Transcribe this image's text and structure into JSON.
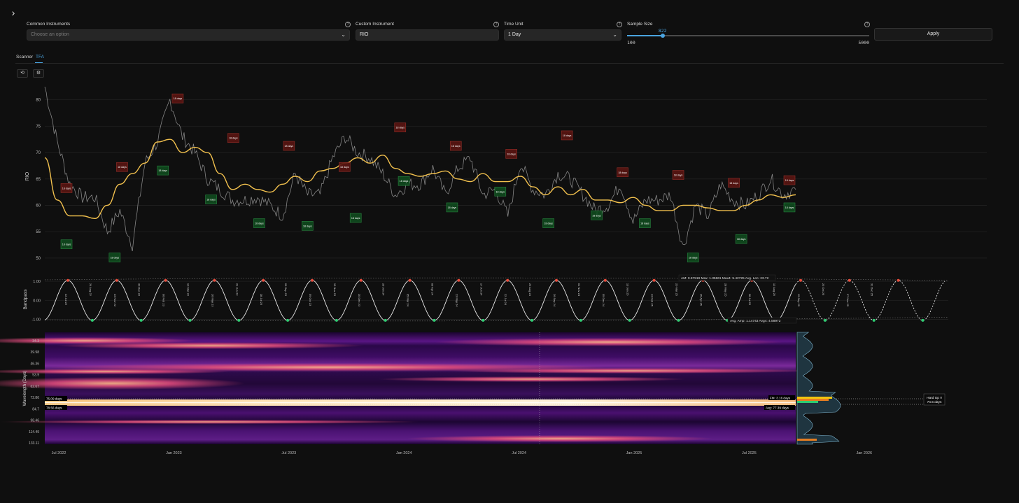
{
  "controls": {
    "common_label": "Common Instruments",
    "common_placeholder": "Choose an option",
    "custom_label": "Custom Instrument",
    "custom_value": "RIO",
    "time_label": "Time Unit",
    "time_value": "1 Day",
    "sample_label": "Sample Size",
    "sample_value": "822",
    "sample_min": "100",
    "sample_max": "5000",
    "sample_fraction": 0.147,
    "apply_label": "Apply"
  },
  "tabs": [
    {
      "label": "Scanner",
      "active": false
    },
    {
      "label": "TFA",
      "active": true
    }
  ],
  "colors": {
    "background": "#0f0f0f",
    "accent": "#4aa3df",
    "cycle_line": "#f2c14e",
    "peak_marker": "#e74c3c",
    "trough_marker": "#2ecc71",
    "price_line": "#9a9a9a"
  },
  "chart_data": [
    {
      "type": "line",
      "name": "price",
      "ylabel": "RIO",
      "yticks": [
        "80",
        "75",
        "70",
        "65",
        "60",
        "55",
        "50"
      ],
      "ylim": [
        48,
        83
      ],
      "grid": true,
      "x_labels": [
        "Jul 2022",
        "Jan 2023",
        "Jul 2023",
        "Jan 2024",
        "Jul 2024",
        "Jan 2025",
        "Jul 2025",
        "Jan 2026"
      ],
      "series": [
        {
          "values": [
            82.5,
            72,
            64,
            61.5,
            61.5,
            55,
            59,
            52.5,
            68,
            72,
            80,
            73,
            70,
            65,
            63,
            61,
            61,
            61.5,
            60,
            58,
            66,
            62,
            62,
            69,
            73,
            70,
            69,
            66,
            62,
            64,
            64,
            67,
            62,
            67,
            69,
            62,
            63,
            58,
            68,
            63,
            62,
            66,
            65,
            62,
            59,
            60,
            64,
            57,
            61,
            61,
            62,
            52,
            60,
            58,
            64,
            61,
            60,
            62,
            65,
            62,
            63
          ]
        },
        {
          "values": [
            69,
            61,
            58,
            58,
            57.5,
            60,
            64,
            66,
            68,
            72,
            72.5,
            70,
            71,
            70,
            66,
            63,
            64,
            63,
            62.5,
            64,
            65.5,
            64.5,
            66.5,
            67,
            68,
            69,
            68,
            69.5,
            67,
            66,
            65.5,
            66,
            66.5,
            65,
            64.5,
            66,
            64.5,
            64.5,
            65.5,
            63.5,
            62,
            63.5,
            62,
            63,
            61,
            61,
            60.5,
            61.5,
            60,
            59,
            59,
            60,
            60,
            59.5,
            59,
            59,
            60,
            61,
            62,
            61.5,
            62
          ]
        }
      ],
      "peak_labels": [
        {
          "text": "18 days",
          "value": 62
        },
        {
          "text": "18 days",
          "value": 66
        },
        {
          "text": "18 days",
          "value": 79
        },
        {
          "text": "18 days",
          "value": 71.5
        },
        {
          "text": "18 days",
          "value": 70
        },
        {
          "text": "18 days",
          "value": 66
        },
        {
          "text": "18 days",
          "value": 73.5
        },
        {
          "text": "18 days",
          "value": 70
        },
        {
          "text": "18 days",
          "value": 68.5
        },
        {
          "text": "18 days",
          "value": 72
        },
        {
          "text": "18 days",
          "value": 65
        },
        {
          "text": "18 days",
          "value": 64.5
        },
        {
          "text": "18 days",
          "value": 63
        },
        {
          "text": "18 days",
          "value": 63.5
        }
      ],
      "trough_labels": [
        {
          "text": "18 days",
          "value": 54
        },
        {
          "text": "18 days",
          "value": 51.5
        },
        {
          "text": "18 days",
          "value": 68
        },
        {
          "text": "18 days",
          "value": 62.5
        },
        {
          "text": "18 days",
          "value": 58
        },
        {
          "text": "18 days",
          "value": 57.5
        },
        {
          "text": "18 days",
          "value": 59
        },
        {
          "text": "18 days",
          "value": 66
        },
        {
          "text": "18 days",
          "value": 61
        },
        {
          "text": "18 days",
          "value": 64
        },
        {
          "text": "18 days",
          "value": 58
        },
        {
          "text": "18 days",
          "value": 59.5
        },
        {
          "text": "18 days",
          "value": 58
        },
        {
          "text": "18 days",
          "value": 51.5
        },
        {
          "text": "18 days",
          "value": 55
        },
        {
          "text": "18 days",
          "value": 61
        }
      ]
    },
    {
      "type": "line",
      "name": "bandpass",
      "ylabel": "Bandpass",
      "yticks": [
        "1.00",
        "0.00",
        "-1.00"
      ],
      "ylim": [
        -1.2,
        1.3
      ],
      "stats_top": "AM: 0.67519  Max: 1.35661  Max4: 5.42725  Avg. Len: 23.72",
      "stats_bottom": "Avg. Amp: 1.14743  Avg4: 4.58972",
      "date_labels": [
        "22 Jul 22",
        "24 Aug 22",
        "23 Nov 22",
        "30 Dec 22",
        "06 Feb 23",
        "10 Mar 23",
        "16 May 23",
        "21 Jun 23",
        "28 Jul 23",
        "06 Sep 23",
        "09 Oct 23",
        "15 Nov 23",
        "20 Dec 23",
        "25 Jan 24",
        "05 Mar 24",
        "09 Apr 24",
        "13 May 24",
        "17 Jun 24",
        "22 Jul 24",
        "23 Aug 24",
        "26 Sep 24",
        "01 Nov 24",
        "05 Dec 24",
        "13 Jan 25",
        "13 Feb 25",
        "20 Mar 25",
        "25 Apr 25",
        "28 May 25",
        "08 Jul 25",
        "12 Aug 25",
        "15 Sep 25",
        "23 Oct 25",
        "27 Nov 25",
        "31 Dec 25"
      ]
    },
    {
      "type": "heatmap",
      "name": "wavelength_spectrum",
      "ylabel": "Wavelength (Days)",
      "yticks": [
        "34.3",
        "39.98",
        "46.36",
        "53.9",
        "62.67",
        "72.86",
        "84.7",
        "98.46",
        "114.49",
        "133.11"
      ],
      "annotations": {
        "primary_band": "75.09 days",
        "secondary_band": "78.56 days",
        "fm": "FM: 3.16 days",
        "avg": "Avg: 77.39 days",
        "signal": "Hard Up !!",
        "signal_sub": "74.5 days"
      }
    }
  ]
}
